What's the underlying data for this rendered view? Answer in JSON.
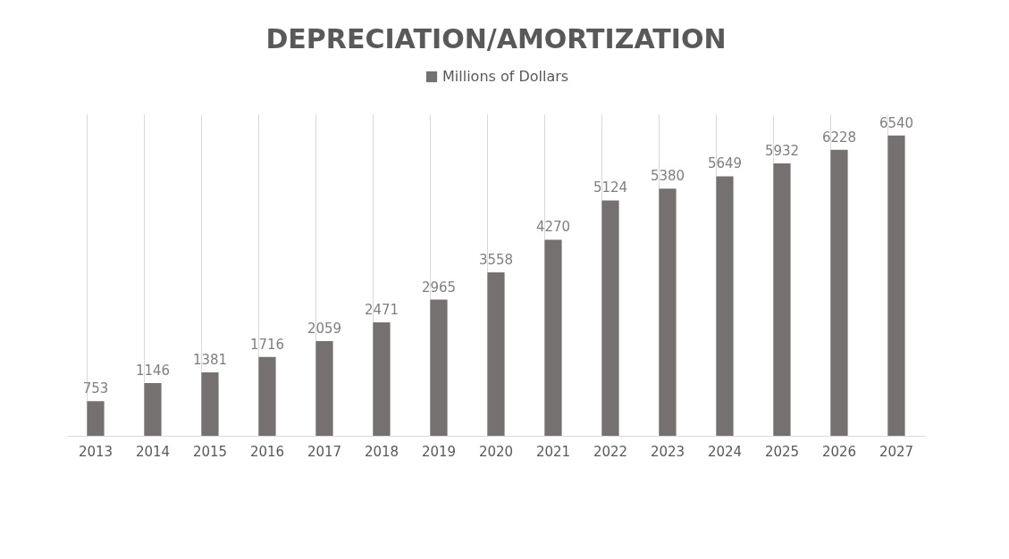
{
  "chart_data": {
    "type": "bar",
    "title": "DEPRECIATION/AMORTIZATION",
    "categories": [
      "2013",
      "2014",
      "2015",
      "2016",
      "2017",
      "2018",
      "2019",
      "2020",
      "2021",
      "2022",
      "2023",
      "2024",
      "2025",
      "2026",
      "2027"
    ],
    "series": [
      {
        "name": "Millions of Dollars",
        "color": "#767171",
        "values": [
          753,
          1146,
          1381,
          1716,
          2059,
          2471,
          2965,
          3558,
          4270,
          5124,
          5380,
          5649,
          5932,
          6228,
          6540
        ]
      }
    ],
    "data_labels": true,
    "grid": "x",
    "legend": "top"
  }
}
